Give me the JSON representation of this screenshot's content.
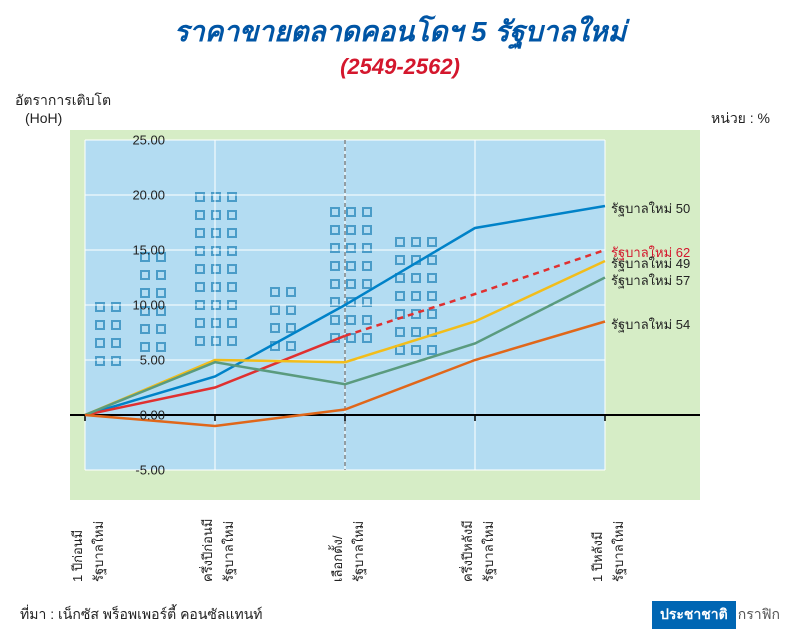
{
  "title": {
    "text": "ราคาขายตลาดคอนโดฯ 5 รัฐบาลใหม่",
    "color": "#0055a5",
    "fontsize": 28
  },
  "subtitle": {
    "text": "(2549-2562)",
    "color": "#d4172d",
    "fontsize": 22
  },
  "yaxis": {
    "label1": "อัตราการเติบโต",
    "label2": "(HoH)"
  },
  "unit": "หน่วย : %",
  "chart": {
    "type": "line",
    "background_color": "#d6edc6",
    "plot_color": "#b3dcf2",
    "grid_color": "#ffffff",
    "axis_color": "#000000",
    "ylim": [
      -5,
      25
    ],
    "ytick_step": 5,
    "yticks": [
      "-5.00",
      "0.00",
      "5.00",
      "10.00",
      "15.00",
      "20.00",
      "25.00"
    ],
    "x_count": 5,
    "xticks": [
      {
        "line1": "1 ปีก่อนมี",
        "line2": "รัฐบาลใหม่"
      },
      {
        "line1": "ครึ่งปีก่อนมี",
        "line2": "รัฐบาลใหม่"
      },
      {
        "line1": "เลือกตั้ง/",
        "line2": "รัฐบาลใหม่"
      },
      {
        "line1": "ครึ่งปีหลังมี",
        "line2": "รัฐบาลใหม่"
      },
      {
        "line1": "1 ปีหลังมี",
        "line2": "รัฐบาลใหม่"
      }
    ],
    "vdash_x": 2,
    "series": [
      {
        "name": "รัฐบาลใหม่ 50",
        "color": "#0082c8",
        "width": 2.5,
        "dashed": false,
        "values": [
          0,
          3.5,
          10,
          17,
          19
        ]
      },
      {
        "name": "รัฐบาลใหม่ 62",
        "color": "#e03030",
        "width": 2.5,
        "dashed": false,
        "dashed_from": 2,
        "values": [
          0,
          2.5,
          7.2,
          11,
          15
        ],
        "label_color": "#d4172d"
      },
      {
        "name": "รัฐบาลใหม่ 49",
        "color": "#f2bd1a",
        "width": 2.5,
        "dashed": false,
        "values": [
          0,
          5,
          4.8,
          8.5,
          14
        ]
      },
      {
        "name": "รัฐบาลใหม่ 57",
        "color": "#5a9b7e",
        "width": 2.5,
        "dashed": false,
        "values": [
          0,
          4.8,
          2.8,
          6.5,
          12.5
        ]
      },
      {
        "name": "รัฐบาลใหม่ 54",
        "color": "#e0671a",
        "width": 2.5,
        "dashed": false,
        "values": [
          0,
          -1,
          0.5,
          5,
          8.5
        ]
      }
    ],
    "building_color": "#5fb3e0",
    "building_stroke": "#4a9cc8"
  },
  "source": "ที่มา : เน็กซัส พร็อพเพอร์ตี้ คอนซัลแทนท์",
  "logo": {
    "box": "ประชาชาติ",
    "text": "กราฟิก",
    "box_bg": "#0066b3"
  }
}
